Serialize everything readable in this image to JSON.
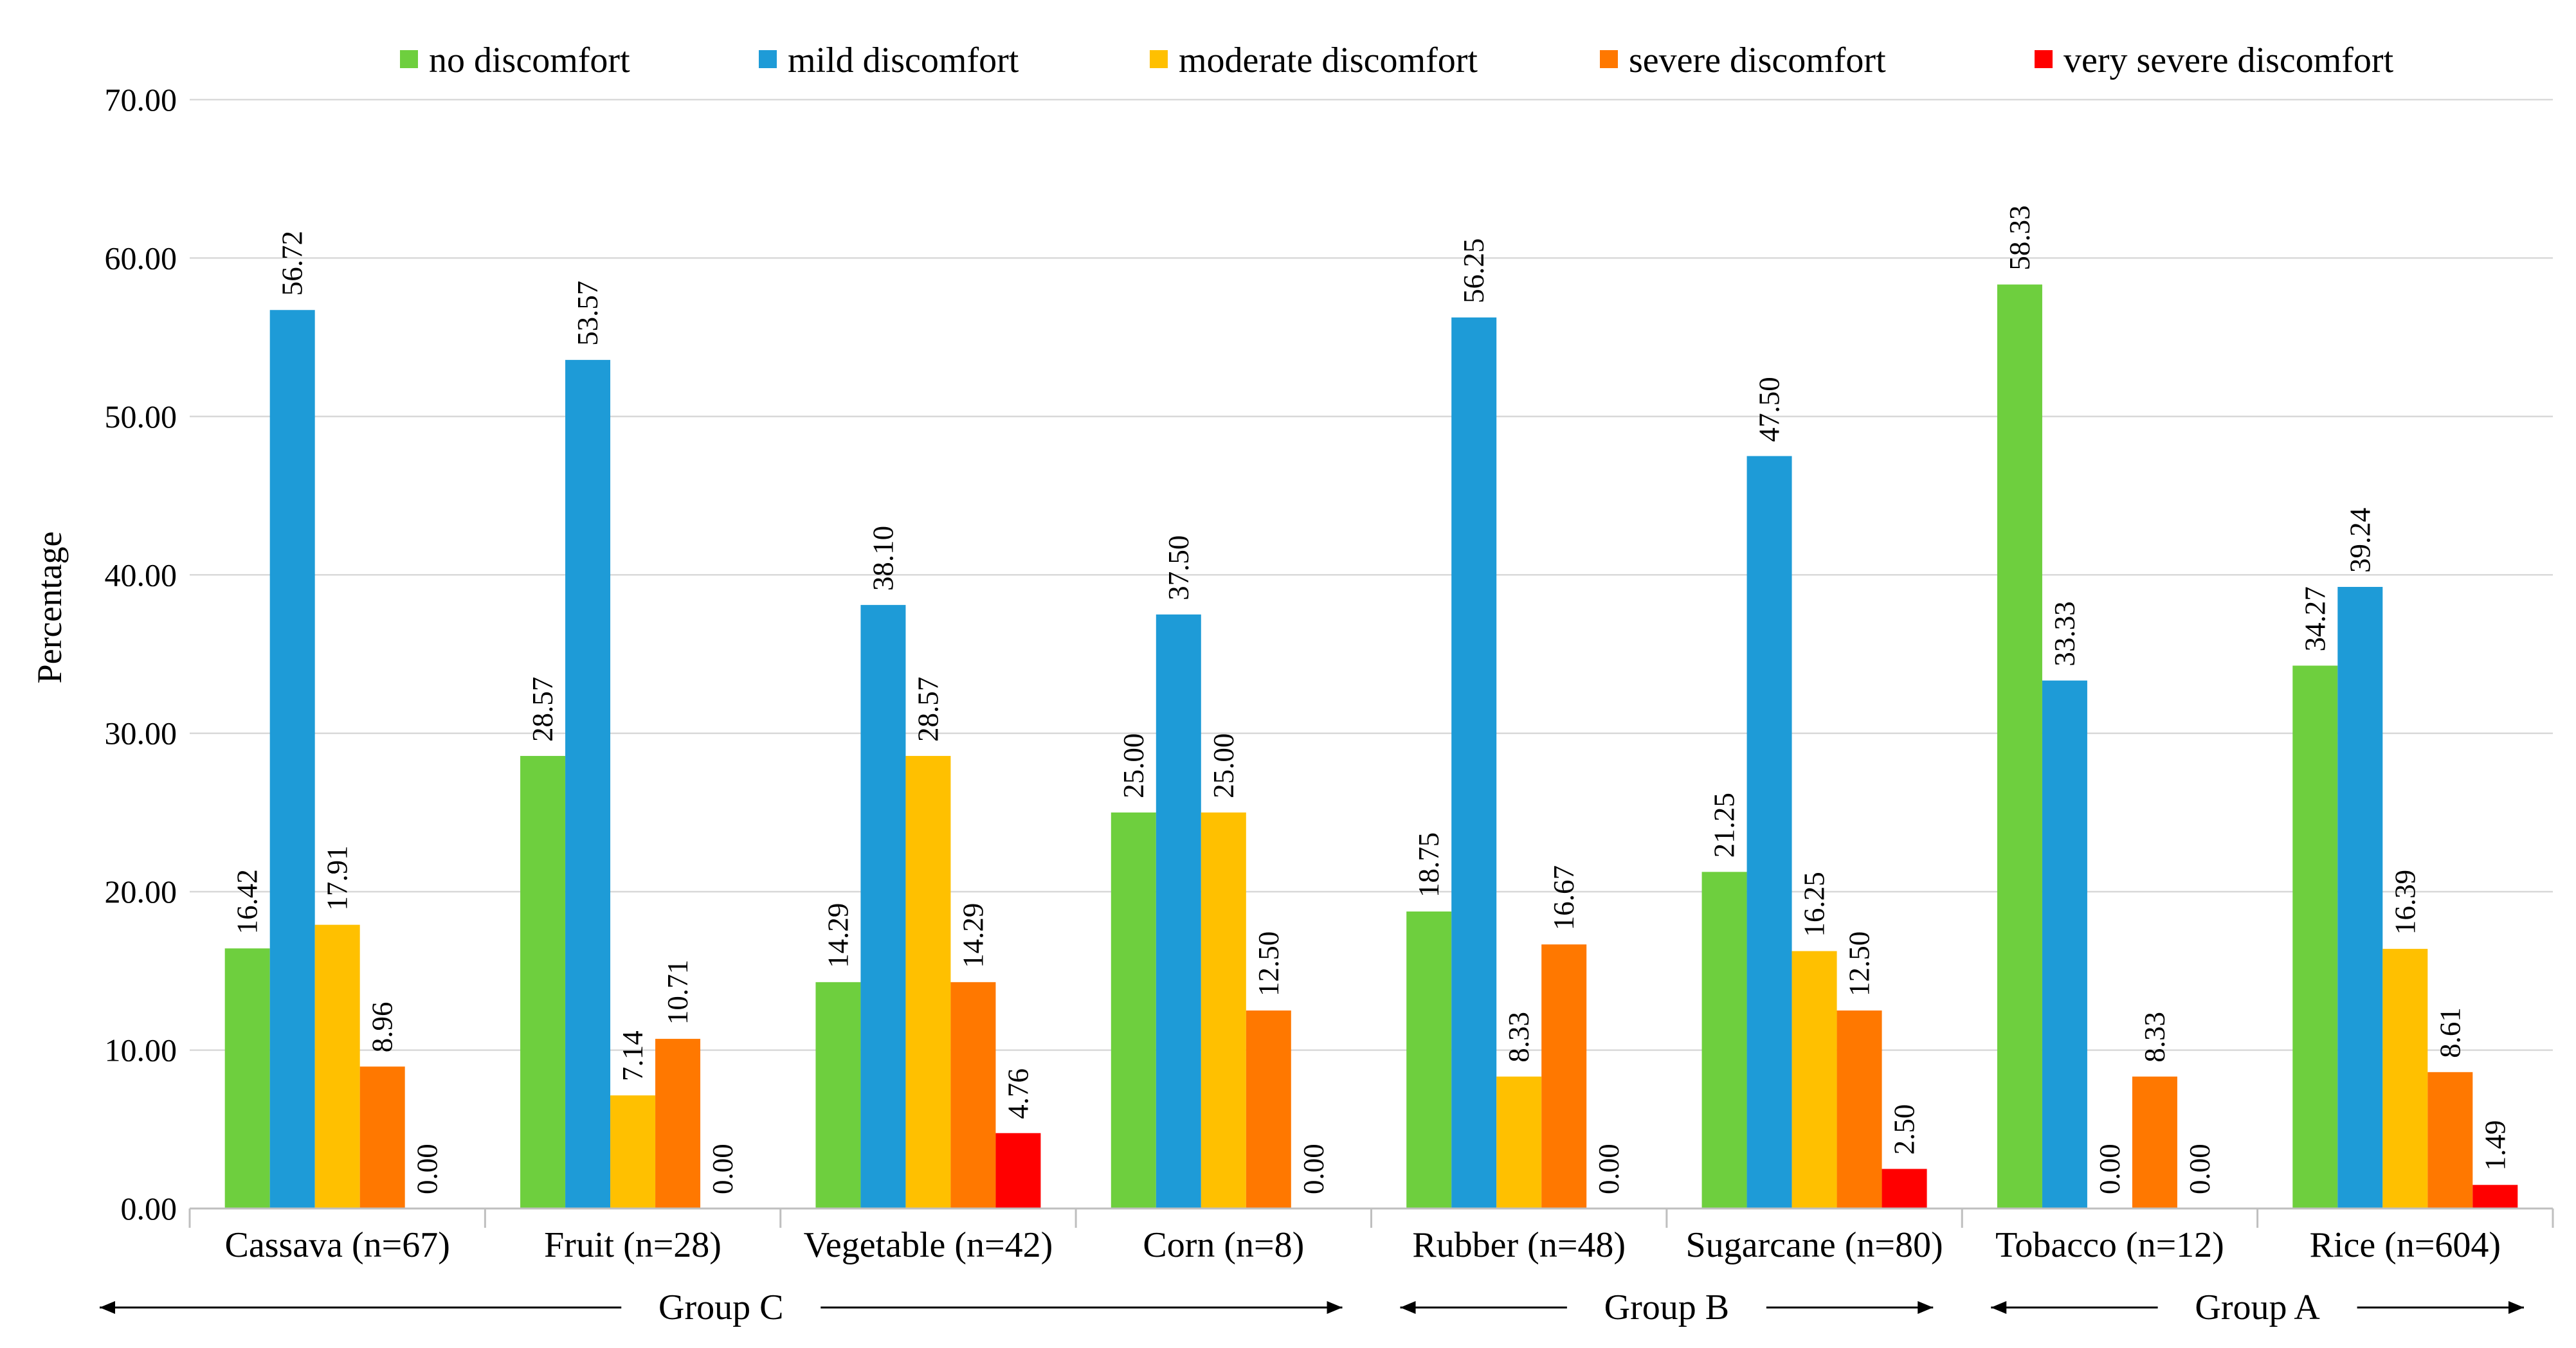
{
  "chart_data": {
    "type": "bar",
    "title": "",
    "xlabel": "",
    "ylabel": "Percentage",
    "ylim": [
      0,
      70
    ],
    "ytick_step": 10,
    "ytick_labels": [
      "0.00",
      "10.00",
      "20.00",
      "30.00",
      "40.00",
      "50.00",
      "60.00",
      "70.00"
    ],
    "grid": true,
    "legend_position": "top",
    "categories": [
      "Cassava (n=67)",
      "Fruit (n=28)",
      "Vegetable (n=42)",
      "Corn (n=8)",
      "Rubber (n=48)",
      "Sugarcane (n=80)",
      "Tobacco (n=12)",
      "Rice (n=604)"
    ],
    "series": [
      {
        "name": "no discomfort",
        "color": "#6ecf3e",
        "values": [
          16.42,
          28.57,
          14.29,
          25.0,
          18.75,
          21.25,
          58.33,
          34.27
        ],
        "labels": [
          "16.42",
          "28.57",
          "14.29",
          "25.00",
          "18.75",
          "21.25",
          "58.33",
          "34.27"
        ]
      },
      {
        "name": "mild discomfort",
        "color": "#1e9bd7",
        "values": [
          56.72,
          53.57,
          38.1,
          37.5,
          56.25,
          47.5,
          33.33,
          39.24
        ],
        "labels": [
          "56.72",
          "53.57",
          "38.10",
          "37.50",
          "56.25",
          "47.50",
          "33.33",
          "39.24"
        ]
      },
      {
        "name": "moderate discomfort",
        "color": "#ffc000",
        "values": [
          17.91,
          7.14,
          28.57,
          25.0,
          8.33,
          16.25,
          0.0,
          16.39
        ],
        "labels": [
          "17.91",
          "7.14",
          "28.57",
          "25.00",
          "8.33",
          "16.25",
          "0.00",
          "16.39"
        ]
      },
      {
        "name": "severe discomfort",
        "color": "#ff7800",
        "values": [
          8.96,
          10.71,
          14.29,
          12.5,
          16.67,
          12.5,
          8.33,
          8.61
        ],
        "labels": [
          "8.96",
          "10.71",
          "14.29",
          "12.50",
          "16.67",
          "12.50",
          "8.33",
          "8.61"
        ]
      },
      {
        "name": "very severe discomfort",
        "color": "#ff0000",
        "values": [
          0.0,
          0.0,
          4.76,
          0.0,
          0.0,
          2.5,
          0.0,
          1.49
        ],
        "labels": [
          "0.00",
          "0.00",
          "4.76",
          "0.00",
          "0.00",
          "2.50",
          "0.00",
          "1.49"
        ]
      }
    ],
    "groups": [
      {
        "label": "Group C",
        "categories": [
          "Cassava (n=67)",
          "Fruit (n=28)",
          "Vegetable (n=42)",
          "Corn (n=8)"
        ]
      },
      {
        "label": "Group B",
        "categories": [
          "Rubber (n=48)",
          "Sugarcane (n=80)"
        ]
      },
      {
        "label": "Group A",
        "categories": [
          "Tobacco (n=12)",
          "Rice (n=604)"
        ]
      }
    ]
  }
}
